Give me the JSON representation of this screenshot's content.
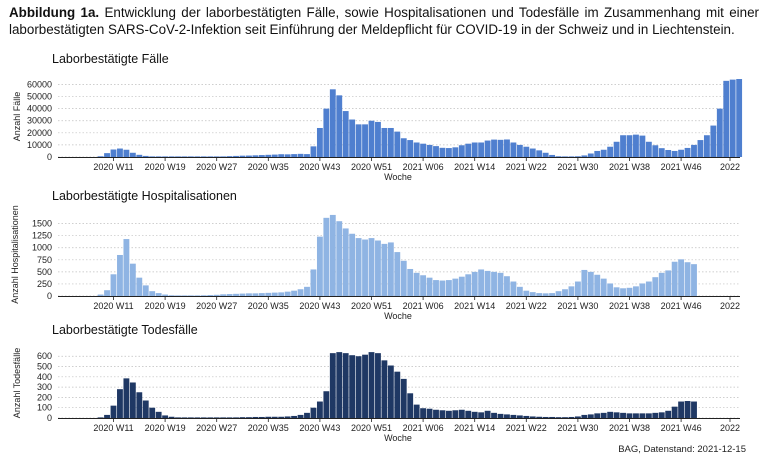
{
  "caption": {
    "label": "Abbildung 1a.",
    "text": "Entwicklung der laborbestätigten Fälle, sowie Hospitalisationen und Todesfälle im Zusammenhang mit einer laborbestätigten SARS-CoV-2-Infektion seit Einführung der Meldepflicht für COVID-19 in der Schweiz und in Liechtenstein."
  },
  "source": "BAG, Datenstand: 2021-12-15",
  "colors": {
    "cases": "#4f7fcf",
    "hosp": "#8fb4e3",
    "deaths": "#1f3864"
  },
  "chart_data": [
    {
      "type": "bar",
      "title": "Laborbestätigte Fälle",
      "xlabel": "Woche",
      "ylabel": "Anzahl Fälle",
      "x_ticks": [
        "2020 W11",
        "2020 W19",
        "2020 W27",
        "2020 W35",
        "2020 W43",
        "2020 W51",
        "2021 W06",
        "2021 W14",
        "2021 W22",
        "2021 W30",
        "2021 W38",
        "2021 W46",
        "2022"
      ],
      "y_ticks": [
        0,
        10000,
        20000,
        30000,
        40000,
        50000,
        60000
      ],
      "ylim": [
        0,
        67000
      ],
      "grid": true,
      "first_week": "2020 W09",
      "values": [
        600,
        3200,
        6200,
        7000,
        6000,
        3500,
        1800,
        900,
        500,
        250,
        150,
        100,
        80,
        70,
        80,
        100,
        130,
        180,
        300,
        500,
        700,
        900,
        1100,
        1200,
        1400,
        1600,
        1800,
        2000,
        2300,
        2200,
        2400,
        2600,
        2400,
        8800,
        24000,
        40000,
        56000,
        51000,
        38000,
        31000,
        27000,
        27000,
        30000,
        29000,
        24000,
        24000,
        21000,
        15500,
        14000,
        12000,
        11000,
        10000,
        9000,
        7600,
        7400,
        8000,
        9700,
        11000,
        12000,
        12000,
        13600,
        14400,
        14200,
        14500,
        12000,
        10000,
        8500,
        7000,
        5500,
        3500,
        1700,
        600,
        400,
        300,
        600,
        1300,
        2900,
        5000,
        6000,
        8500,
        12600,
        18000,
        18000,
        18500,
        17700,
        12600,
        9700,
        7300,
        5800,
        5000,
        6000,
        7500,
        10000,
        14000,
        18000,
        26000,
        40000,
        63000,
        64000,
        64500
      ]
    },
    {
      "type": "bar",
      "title": "Laborbestätigte Hospitalisationen",
      "xlabel": "Woche",
      "ylabel": "Anzahl Hospitalisationen",
      "x_ticks": [
        "2020 W11",
        "2020 W19",
        "2020 W27",
        "2020 W35",
        "2020 W43",
        "2020 W51",
        "2021 W06",
        "2021 W14",
        "2021 W22",
        "2021 W30",
        "2021 W38",
        "2021 W46",
        "2022"
      ],
      "y_ticks": [
        0,
        250,
        500,
        750,
        1000,
        1250,
        1500
      ],
      "ylim": [
        0,
        1720
      ],
      "grid": true,
      "first_week": "2020 W09",
      "values": [
        30,
        120,
        450,
        850,
        1180,
        670,
        380,
        220,
        100,
        60,
        30,
        15,
        10,
        10,
        10,
        12,
        15,
        20,
        25,
        35,
        40,
        45,
        50,
        55,
        55,
        60,
        65,
        70,
        75,
        90,
        110,
        140,
        190,
        550,
        1230,
        1620,
        1680,
        1550,
        1400,
        1290,
        1200,
        1170,
        1200,
        1150,
        1080,
        1110,
        910,
        730,
        560,
        480,
        430,
        380,
        330,
        320,
        330,
        360,
        400,
        450,
        500,
        550,
        520,
        500,
        480,
        410,
        300,
        190,
        110,
        80,
        60,
        55,
        60,
        100,
        140,
        200,
        300,
        540,
        500,
        440,
        360,
        260,
        180,
        160,
        170,
        200,
        260,
        300,
        390,
        480,
        530,
        710,
        760,
        700,
        660
      ]
    },
    {
      "type": "bar",
      "title": "Laborbestätigte Todesfälle",
      "xlabel": "Woche",
      "ylabel": "Anzahl Todesfälle",
      "x_ticks": [
        "2020 W11",
        "2020 W19",
        "2020 W27",
        "2020 W35",
        "2020 W43",
        "2020 W51",
        "2021 W06",
        "2021 W14",
        "2021 W22",
        "2021 W30",
        "2021 W38",
        "2021 W46",
        "2022"
      ],
      "y_ticks": [
        0,
        100,
        200,
        300,
        400,
        500,
        600
      ],
      "ylim": [
        0,
        680
      ],
      "grid": true,
      "first_week": "2020 W09",
      "values": [
        5,
        30,
        120,
        280,
        385,
        345,
        250,
        170,
        100,
        60,
        25,
        12,
        6,
        4,
        3,
        3,
        3,
        3,
        4,
        4,
        5,
        6,
        8,
        8,
        10,
        10,
        12,
        12,
        12,
        15,
        20,
        30,
        50,
        100,
        160,
        260,
        630,
        640,
        630,
        610,
        600,
        615,
        640,
        630,
        560,
        510,
        450,
        380,
        240,
        130,
        95,
        90,
        80,
        75,
        70,
        75,
        80,
        70,
        60,
        55,
        70,
        50,
        40,
        35,
        30,
        25,
        20,
        15,
        12,
        10,
        10,
        8,
        8,
        10,
        15,
        30,
        35,
        45,
        50,
        60,
        55,
        50,
        45,
        45,
        45,
        45,
        50,
        55,
        70,
        110,
        160,
        165,
        160
      ]
    }
  ]
}
